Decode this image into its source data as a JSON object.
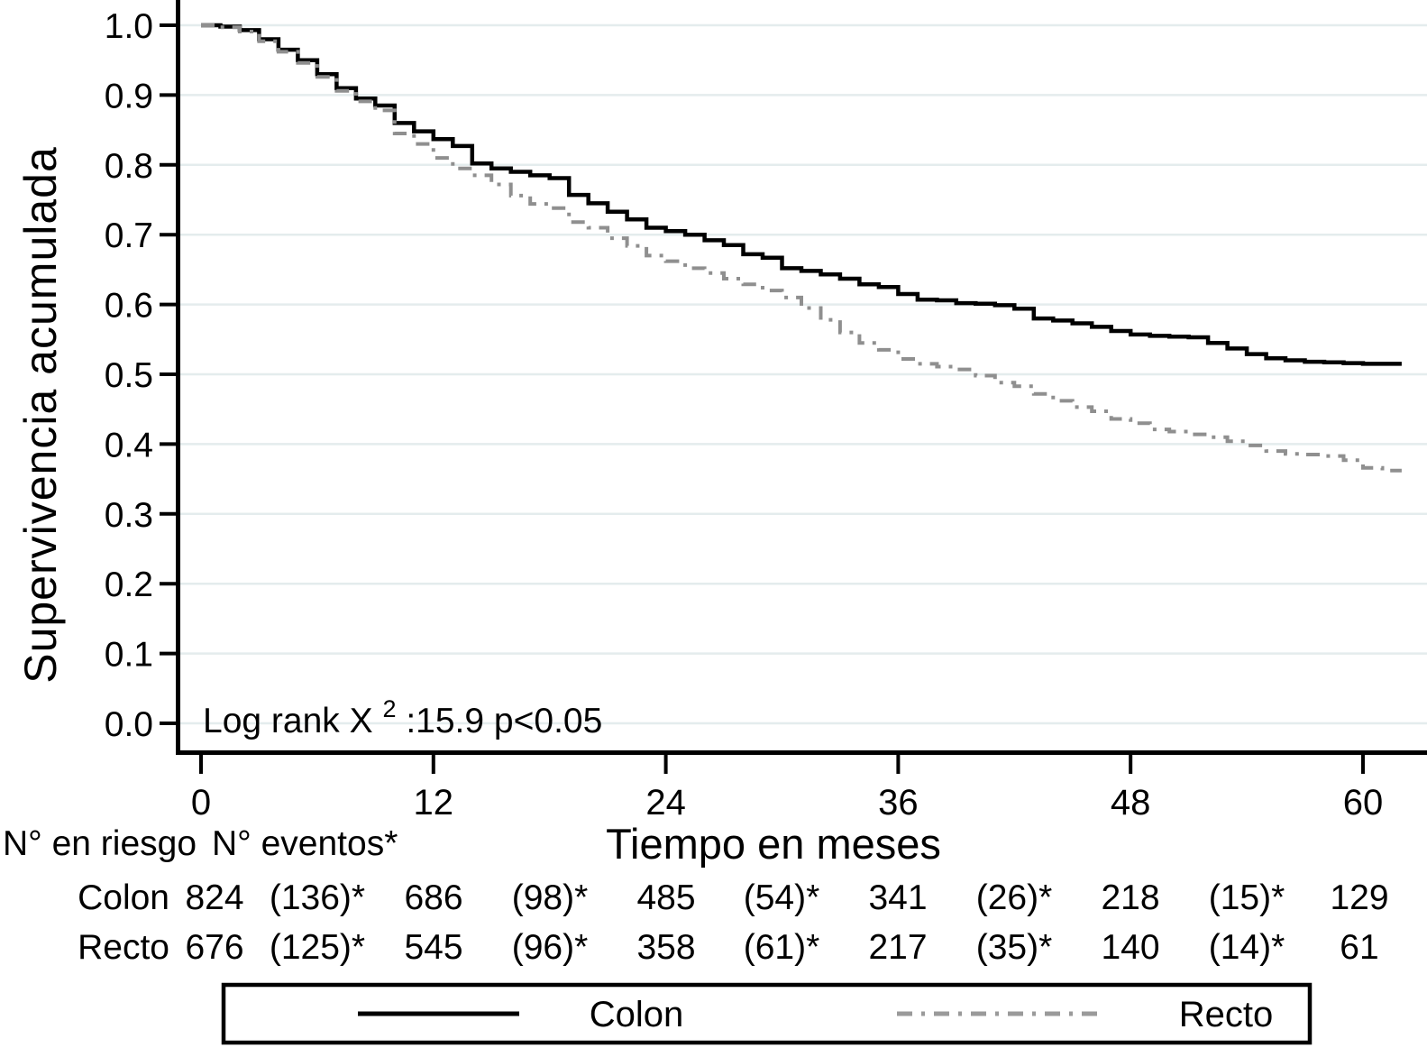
{
  "figure": {
    "y_axis_title": "Supervivencia acumulada",
    "x_axis_title": "Tiempo en meses",
    "annotation": {
      "base": "Log rank X",
      "sup": "2",
      "rest": " :15.9  p<0.05"
    }
  },
  "chart_data": {
    "type": "line",
    "subtype": "kaplan-meier-step",
    "title": "",
    "xlabel": "Tiempo en meses",
    "ylabel": "Supervivencia acumulada",
    "annotation": "Log rank X² :15.9  p<0.05",
    "x_ticks": [
      0,
      12,
      24,
      36,
      48,
      60
    ],
    "y_grid_values": [
      0.0,
      0.1,
      0.2,
      0.3,
      0.4,
      0.5,
      0.6,
      0.7,
      0.8,
      0.9,
      1.0
    ],
    "y_tick_labels": [
      "0.0",
      "0.1",
      "0.2",
      "0.3",
      "0.4",
      "0.5",
      "0.6",
      "0.7",
      "0.8",
      "0.9",
      "1.0"
    ],
    "xlim": [
      0,
      63.3
    ],
    "ylim": [
      0,
      1
    ],
    "grid": "horizontal",
    "gridline_color": "#e4eced",
    "legend_position": "bottom-box",
    "series": [
      {
        "name": "Colon",
        "style": "solid",
        "color": "#000000",
        "x": [
          0,
          1,
          2,
          3,
          4,
          5,
          6,
          7,
          8,
          9,
          10,
          11,
          12,
          13,
          14,
          15,
          16,
          17,
          18,
          19,
          20,
          21,
          22,
          23,
          24,
          25,
          26,
          27,
          28,
          29,
          30,
          31,
          32,
          33,
          34,
          35,
          36,
          37,
          38,
          39,
          40,
          41,
          42,
          43,
          44,
          45,
          46,
          47,
          48,
          49,
          50,
          51,
          52,
          53,
          54,
          55,
          56,
          57,
          58,
          59,
          60,
          61,
          62
        ],
        "y": [
          1.0,
          0.998,
          0.993,
          0.98,
          0.965,
          0.95,
          0.93,
          0.91,
          0.895,
          0.885,
          0.86,
          0.848,
          0.837,
          0.827,
          0.802,
          0.795,
          0.79,
          0.785,
          0.781,
          0.757,
          0.745,
          0.733,
          0.722,
          0.71,
          0.705,
          0.7,
          0.692,
          0.685,
          0.672,
          0.667,
          0.652,
          0.648,
          0.643,
          0.637,
          0.629,
          0.625,
          0.615,
          0.607,
          0.606,
          0.602,
          0.601,
          0.599,
          0.594,
          0.58,
          0.577,
          0.573,
          0.568,
          0.562,
          0.557,
          0.555,
          0.554,
          0.553,
          0.545,
          0.537,
          0.529,
          0.523,
          0.52,
          0.518,
          0.517,
          0.516,
          0.515,
          0.515,
          0.515
        ]
      },
      {
        "name": "Recto",
        "style": "dash-dot",
        "color": "#8f8f8f",
        "x": [
          0,
          1,
          2,
          3,
          4,
          5,
          6,
          7,
          8,
          9,
          10,
          11,
          12,
          13,
          14,
          15,
          16,
          17,
          18,
          19,
          20,
          21,
          22,
          23,
          24,
          25,
          26,
          27,
          28,
          29,
          30,
          31,
          32,
          33,
          34,
          35,
          36,
          37,
          38,
          39,
          40,
          41,
          42,
          43,
          44,
          45,
          46,
          47,
          48,
          49,
          50,
          51,
          52,
          53,
          54,
          55,
          56,
          57,
          58,
          59,
          60,
          61,
          62
        ],
        "y": [
          1.0,
          0.997,
          0.991,
          0.977,
          0.962,
          0.946,
          0.926,
          0.906,
          0.891,
          0.878,
          0.845,
          0.83,
          0.81,
          0.795,
          0.785,
          0.772,
          0.756,
          0.744,
          0.738,
          0.718,
          0.71,
          0.695,
          0.684,
          0.67,
          0.662,
          0.652,
          0.645,
          0.637,
          0.629,
          0.62,
          0.61,
          0.595,
          0.578,
          0.56,
          0.545,
          0.535,
          0.522,
          0.515,
          0.511,
          0.507,
          0.498,
          0.488,
          0.483,
          0.472,
          0.462,
          0.453,
          0.447,
          0.436,
          0.43,
          0.421,
          0.418,
          0.414,
          0.41,
          0.404,
          0.398,
          0.39,
          0.386,
          0.385,
          0.383,
          0.377,
          0.366,
          0.362,
          0.362
        ]
      }
    ]
  },
  "risk_table": {
    "header_risk": "N° en riesgo",
    "header_events": "N° eventos*",
    "rows": [
      {
        "label": "Colon",
        "values": [
          "824",
          "(136)*",
          "686",
          "(98)*",
          "485",
          "(54)*",
          "341",
          "(26)*",
          "218",
          "(15)*",
          "129"
        ]
      },
      {
        "label": "Recto",
        "values": [
          "676",
          "(125)*",
          "545",
          "(96)*",
          "358",
          "(61)*",
          "217",
          "(35)*",
          "140",
          "(14)*",
          "61"
        ]
      }
    ]
  },
  "legend": {
    "items": [
      {
        "label": "Colon",
        "style": "solid",
        "color": "#000000"
      },
      {
        "label": "Recto",
        "style": "dash-dot",
        "color": "#9a9a9a"
      }
    ]
  }
}
